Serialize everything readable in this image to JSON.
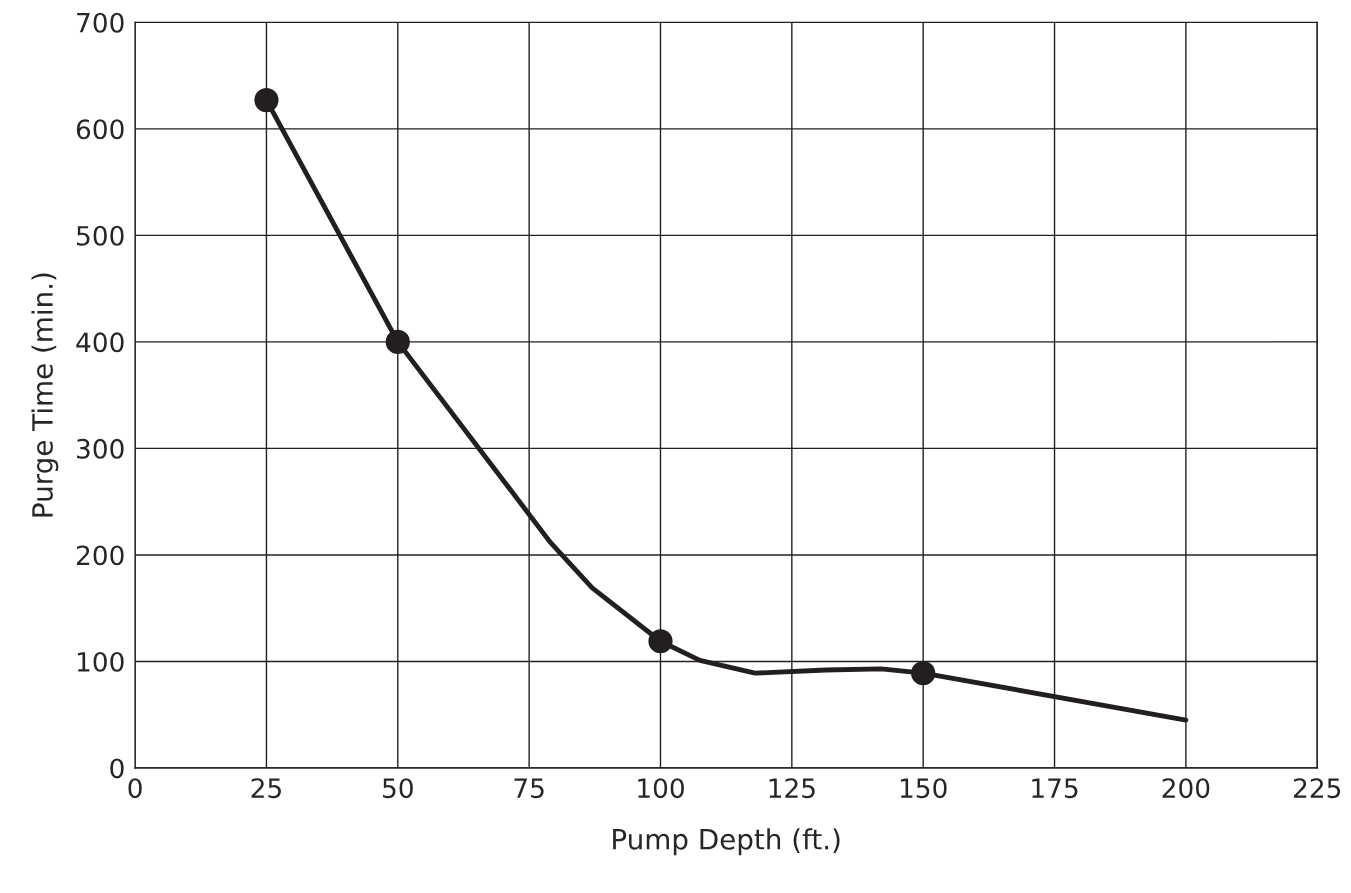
{
  "chart_data": {
    "type": "line",
    "xlabel": "Pump Depth (ft.)",
    "ylabel": "Purge Time (min.)",
    "xlim": [
      0,
      225
    ],
    "ylim": [
      0,
      700
    ],
    "xticks": [
      0,
      25,
      50,
      75,
      100,
      125,
      150,
      175,
      200,
      225
    ],
    "yticks": [
      0,
      100,
      200,
      300,
      400,
      500,
      600,
      700
    ],
    "grid": true,
    "legend": false,
    "series": [
      {
        "color": "#231f20",
        "marker": "none",
        "line_style": "solid",
        "x": [
          25,
          50,
          71,
          79,
          87,
          100,
          107.5,
          118,
          131.5,
          142,
          150,
          200
        ],
        "values": [
          627,
          400,
          264,
          212,
          169,
          119,
          101,
          89,
          92,
          93,
          89,
          45
        ]
      },
      {
        "type": "scatter",
        "color": "#231f20",
        "marker": "circle",
        "x": [
          25,
          50,
          100,
          150
        ],
        "values": [
          627,
          400,
          119,
          89
        ]
      }
    ]
  }
}
